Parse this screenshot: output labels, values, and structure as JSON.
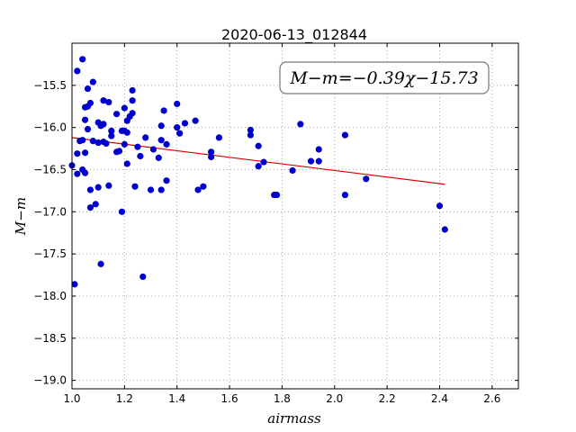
{
  "chart_data": {
    "type": "scatter",
    "title": "2020-06-13_012844",
    "xlabel": "airmass",
    "ylabel": "M−m",
    "xlim": [
      1.0,
      2.7
    ],
    "ylim": [
      -19.1,
      -15.0
    ],
    "y_inverted": true,
    "grid": true,
    "x_ticks": [
      "1.0",
      "1.2",
      "1.4",
      "1.6",
      "1.8",
      "2.0",
      "2.2",
      "2.4",
      "2.6"
    ],
    "y_ticks": [
      "−15.5",
      "−16.0",
      "−16.5",
      "−17.0",
      "−17.5",
      "−18.0",
      "−18.5",
      "−19.0"
    ],
    "annotation": "M−m=−0.39χ−15.73",
    "points_color": "#0000cc",
    "fit_color": "#dd0000",
    "fit": {
      "slope": -0.39,
      "intercept": -15.73,
      "x_start": 1.0,
      "x_end": 2.42
    },
    "points": [
      {
        "x": 1.0,
        "y": -16.45
      },
      {
        "x": 1.01,
        "y": -17.86
      },
      {
        "x": 1.02,
        "y": -15.33
      },
      {
        "x": 1.02,
        "y": -16.31
      },
      {
        "x": 1.02,
        "y": -16.55
      },
      {
        "x": 1.03,
        "y": -16.16
      },
      {
        "x": 1.04,
        "y": -15.19
      },
      {
        "x": 1.04,
        "y": -16.15
      },
      {
        "x": 1.04,
        "y": -16.5
      },
      {
        "x": 1.05,
        "y": -15.76
      },
      {
        "x": 1.05,
        "y": -15.91
      },
      {
        "x": 1.05,
        "y": -16.3
      },
      {
        "x": 1.05,
        "y": -16.54
      },
      {
        "x": 1.06,
        "y": -15.54
      },
      {
        "x": 1.06,
        "y": -15.75
      },
      {
        "x": 1.06,
        "y": -16.02
      },
      {
        "x": 1.07,
        "y": -15.71
      },
      {
        "x": 1.07,
        "y": -16.74
      },
      {
        "x": 1.07,
        "y": -16.95
      },
      {
        "x": 1.08,
        "y": -15.46
      },
      {
        "x": 1.08,
        "y": -16.16
      },
      {
        "x": 1.09,
        "y": -16.91
      },
      {
        "x": 1.1,
        "y": -15.94
      },
      {
        "x": 1.1,
        "y": -16.18
      },
      {
        "x": 1.1,
        "y": -16.71
      },
      {
        "x": 1.11,
        "y": -15.98
      },
      {
        "x": 1.11,
        "y": -17.62
      },
      {
        "x": 1.12,
        "y": -15.68
      },
      {
        "x": 1.12,
        "y": -15.96
      },
      {
        "x": 1.12,
        "y": -16.17
      },
      {
        "x": 1.13,
        "y": -16.19
      },
      {
        "x": 1.14,
        "y": -16.69
      },
      {
        "x": 1.14,
        "y": -15.7
      },
      {
        "x": 1.15,
        "y": -16.04
      },
      {
        "x": 1.15,
        "y": -16.1
      },
      {
        "x": 1.17,
        "y": -15.84
      },
      {
        "x": 1.17,
        "y": -16.29
      },
      {
        "x": 1.18,
        "y": -16.28
      },
      {
        "x": 1.19,
        "y": -16.04
      },
      {
        "x": 1.19,
        "y": -17.0
      },
      {
        "x": 1.2,
        "y": -15.77
      },
      {
        "x": 1.2,
        "y": -16.04
      },
      {
        "x": 1.2,
        "y": -16.2
      },
      {
        "x": 1.21,
        "y": -15.92
      },
      {
        "x": 1.21,
        "y": -16.43
      },
      {
        "x": 1.21,
        "y": -16.06
      },
      {
        "x": 1.22,
        "y": -15.87
      },
      {
        "x": 1.23,
        "y": -15.68
      },
      {
        "x": 1.23,
        "y": -15.56
      },
      {
        "x": 1.23,
        "y": -15.83
      },
      {
        "x": 1.24,
        "y": -16.7
      },
      {
        "x": 1.25,
        "y": -16.23
      },
      {
        "x": 1.26,
        "y": -16.34
      },
      {
        "x": 1.27,
        "y": -17.77
      },
      {
        "x": 1.28,
        "y": -16.12
      },
      {
        "x": 1.3,
        "y": -16.74
      },
      {
        "x": 1.31,
        "y": -16.26
      },
      {
        "x": 1.33,
        "y": -16.36
      },
      {
        "x": 1.34,
        "y": -15.98
      },
      {
        "x": 1.34,
        "y": -16.15
      },
      {
        "x": 1.34,
        "y": -16.74
      },
      {
        "x": 1.35,
        "y": -15.8
      },
      {
        "x": 1.36,
        "y": -16.2
      },
      {
        "x": 1.36,
        "y": -16.63
      },
      {
        "x": 1.4,
        "y": -15.72
      },
      {
        "x": 1.4,
        "y": -16.0
      },
      {
        "x": 1.41,
        "y": -16.07
      },
      {
        "x": 1.43,
        "y": -15.95
      },
      {
        "x": 1.47,
        "y": -15.92
      },
      {
        "x": 1.48,
        "y": -16.74
      },
      {
        "x": 1.5,
        "y": -16.7
      },
      {
        "x": 1.53,
        "y": -16.29
      },
      {
        "x": 1.53,
        "y": -16.35
      },
      {
        "x": 1.56,
        "y": -16.12
      },
      {
        "x": 1.68,
        "y": -16.03
      },
      {
        "x": 1.68,
        "y": -16.09
      },
      {
        "x": 1.71,
        "y": -16.22
      },
      {
        "x": 1.71,
        "y": -16.46
      },
      {
        "x": 1.73,
        "y": -16.41
      },
      {
        "x": 1.77,
        "y": -16.8
      },
      {
        "x": 1.78,
        "y": -16.8
      },
      {
        "x": 1.84,
        "y": -16.51
      },
      {
        "x": 1.87,
        "y": -15.96
      },
      {
        "x": 1.91,
        "y": -16.4
      },
      {
        "x": 1.94,
        "y": -16.26
      },
      {
        "x": 1.94,
        "y": -16.4
      },
      {
        "x": 2.04,
        "y": -16.09
      },
      {
        "x": 2.04,
        "y": -16.8
      },
      {
        "x": 2.12,
        "y": -16.61
      },
      {
        "x": 2.4,
        "y": -16.93
      },
      {
        "x": 2.42,
        "y": -17.21
      }
    ]
  }
}
